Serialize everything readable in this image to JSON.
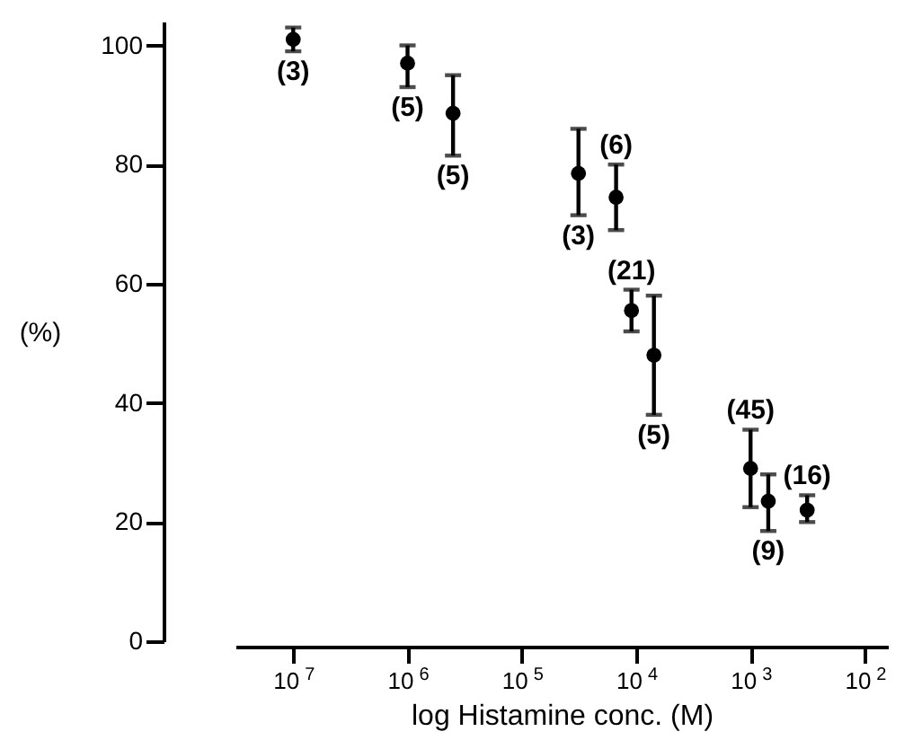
{
  "chart_data": {
    "type": "scatter",
    "xlabel": "log Histamine conc. (M)",
    "ylabel": "(%)",
    "x": [
      10000000.0,
      1000000.0,
      400000.0,
      32000.0,
      15000.0,
      11000.0,
      7000.0,
      1000.0,
      700.0,
      320.0
    ],
    "values": [
      101,
      97,
      88.6,
      78.5,
      74.5,
      55.5,
      48,
      29,
      23.5,
      22
    ],
    "errors": [
      [
        99,
        103
      ],
      [
        93,
        100
      ],
      [
        81.5,
        95
      ],
      [
        71.5,
        86
      ],
      [
        69,
        80
      ],
      [
        52,
        59
      ],
      [
        38,
        58
      ],
      [
        22.5,
        35.5
      ],
      [
        18.5,
        28
      ],
      [
        20,
        24.5
      ]
    ],
    "color": "#000000",
    "marker": "circle",
    "log": "x",
    "annotations": [
      {
        "text": "(3)",
        "x": 10000000.0,
        "y": 99
      },
      {
        "text": "(5)",
        "x": 1000000.0,
        "y": 93
      },
      {
        "text": "(5)",
        "x": 400000.0,
        "y": 81.5
      },
      {
        "text": "(3)",
        "x": 32000.0,
        "y": 71.5
      },
      {
        "text": "(6)",
        "x": 15000.0,
        "y": 80
      },
      {
        "text": "(21)",
        "x": 11000.0,
        "y": 59
      },
      {
        "text": "(5)",
        "x": 7000.0,
        "y": 38
      },
      {
        "text": "(45)",
        "x": 1000.0,
        "y": 35.5
      },
      {
        "text": "(9)",
        "x": 700.0,
        "y": 18.5
      },
      {
        "text": "(16)",
        "x": 320.0,
        "y": 24.5
      }
    ],
    "xlim": [
      32000000.0,
      63
    ],
    "ylim": [
      0,
      104
    ],
    "xticks": [
      {
        "value": 10000000.0,
        "label": "10$^{7}$"
      },
      {
        "value": 1000000.0,
        "label": "10$^{6}$"
      },
      {
        "value": 100000.0,
        "label": "10$^{5}$"
      },
      {
        "value": 10000.0,
        "label": "10$^{4}$"
      },
      {
        "value": 1000.0,
        "label": "10$^{3}$"
      },
      {
        "value": 100.0,
        "label": "10$^{2}$"
      }
    ],
    "yticks": [
      0,
      20,
      40,
      60,
      80,
      100
    ],
    "grid": false
  }
}
